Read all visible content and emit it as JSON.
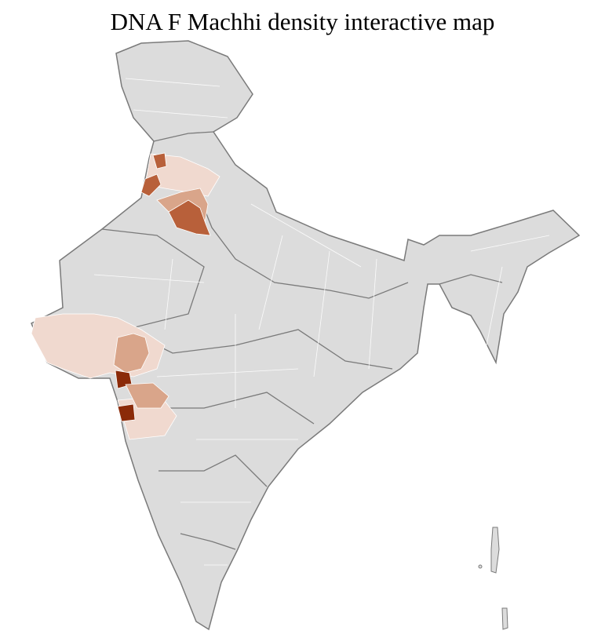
{
  "title": "DNA F Machhi density interactive map",
  "colors": {
    "base": "#dcdcdc",
    "border_state": "#7a7a7a",
    "border_district": "#ffffff",
    "density_low": "#f0d9cf",
    "density_mid": "#d9a58a",
    "density_high": "#b8603a",
    "density_max": "#8b2a08"
  }
}
